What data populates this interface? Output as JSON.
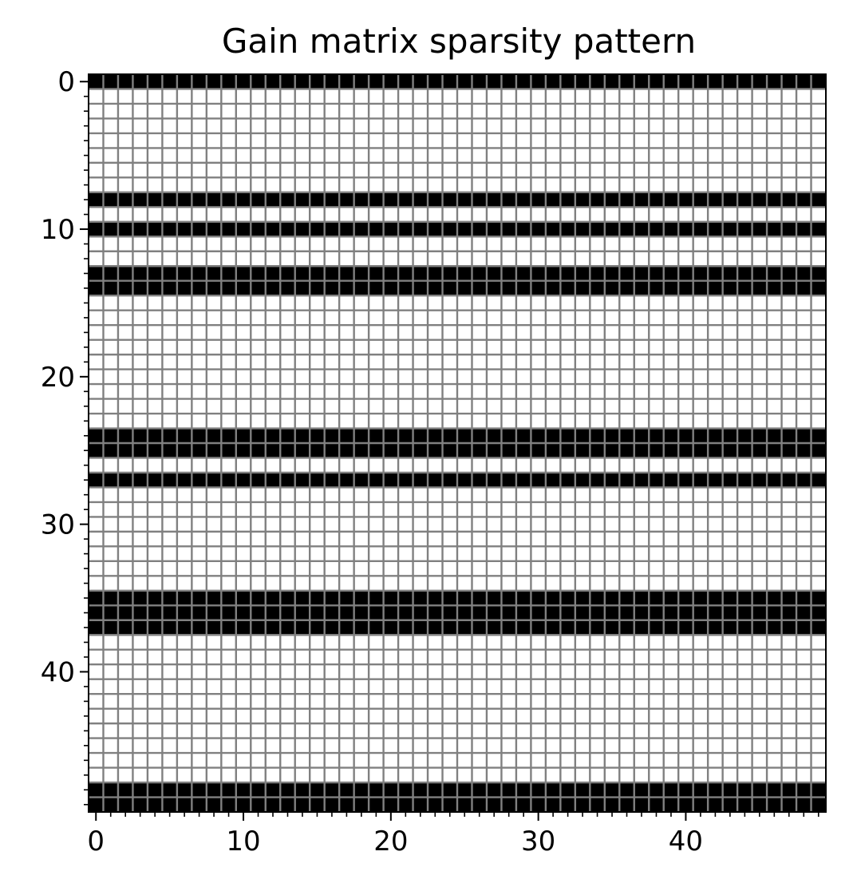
{
  "chart_data": {
    "type": "heatmap",
    "title": "Gain matrix sparsity pattern",
    "xlabel": "",
    "ylabel": "",
    "n_rows": 50,
    "n_cols": 50,
    "xlim": [
      0,
      49
    ],
    "ylim": [
      0,
      49
    ],
    "y_inverted": true,
    "nonzero_rows": [
      0,
      8,
      10,
      13,
      14,
      24,
      25,
      27,
      35,
      36,
      37,
      48,
      49
    ],
    "x_ticks": [
      0,
      10,
      20,
      30,
      40
    ],
    "y_ticks": [
      0,
      10,
      20,
      30,
      40
    ],
    "x_tick_labels": [
      "0",
      "10",
      "20",
      "30",
      "40"
    ],
    "y_tick_labels": [
      "0",
      "10",
      "20",
      "30",
      "40"
    ],
    "grid": true,
    "colors": {
      "nonzero": "#000000",
      "zero": "#ffffff",
      "grid": "#808080",
      "axes": "#000000"
    }
  }
}
